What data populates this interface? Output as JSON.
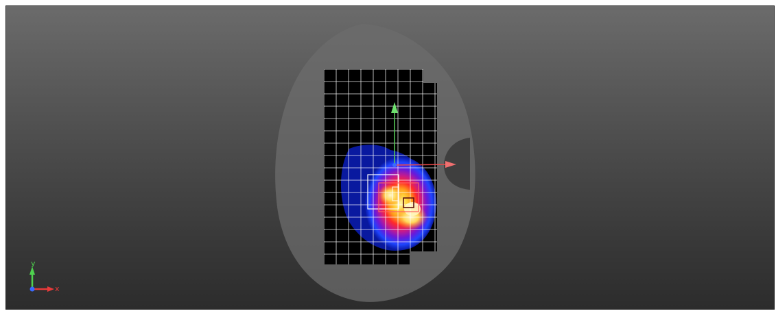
{
  "viewer": {
    "background_colors": [
      "#6b6b6b",
      "#2c2c2c"
    ],
    "heatmap_colors": [
      "#0a1aa8",
      "#1f45ff",
      "#6a19d9",
      "#c61a8c",
      "#ff2a2a",
      "#ff9a1a",
      "#ffd23a",
      "#fff2a0"
    ]
  },
  "orientation_gizmo": {
    "x_label": "x",
    "y_label": "y",
    "x_color": "#e83a3a",
    "y_color": "#4fd24f",
    "z_color": "#3a6bff"
  },
  "local_axes": {
    "x_color": "#e84a4a",
    "y_color": "#58d058"
  }
}
